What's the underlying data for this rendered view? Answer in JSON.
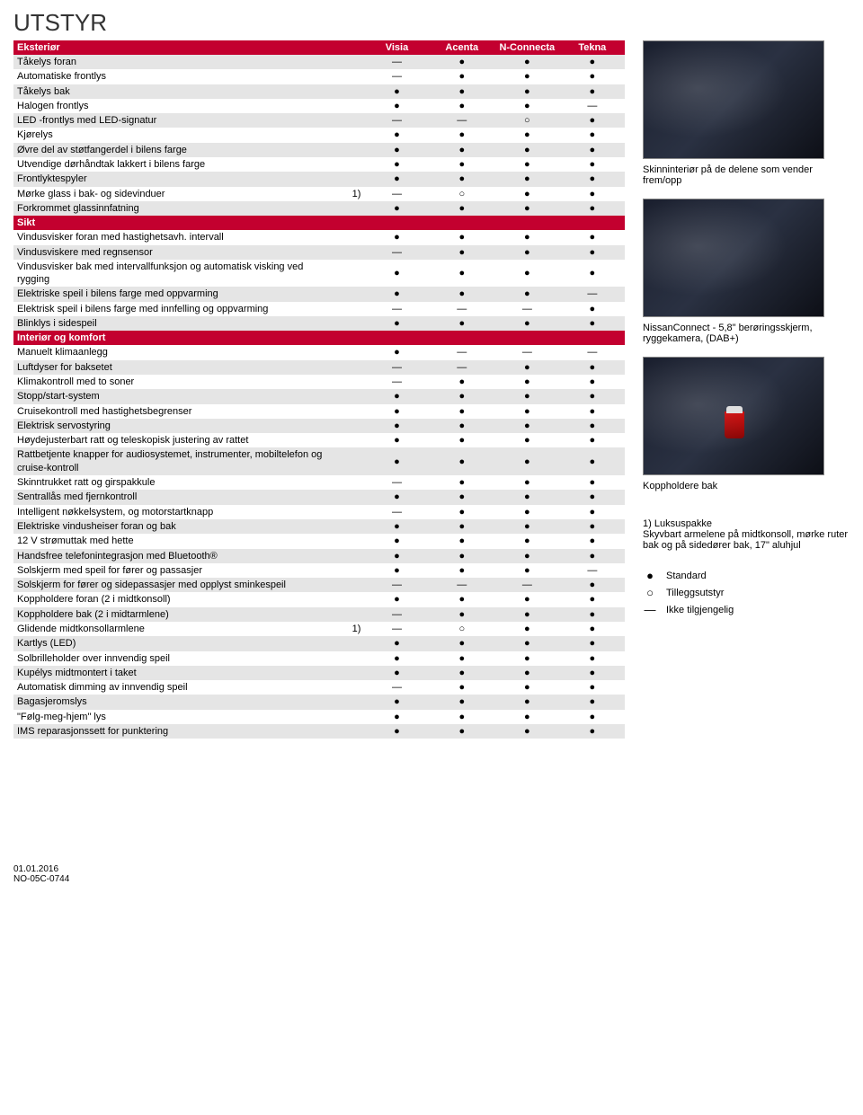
{
  "page_title": "UTSTYR",
  "columns": [
    "Visia",
    "Acenta",
    "N-Connecta",
    "Tekna"
  ],
  "symbols": {
    "std": "●",
    "opt": "○",
    "na": "—"
  },
  "sections": [
    {
      "header": "Eksteriør",
      "isFirst": true,
      "rows": [
        {
          "label": "Tåkelys foran",
          "note": "",
          "vals": [
            "na",
            "std",
            "std",
            "std"
          ]
        },
        {
          "label": "Automatiske frontlys",
          "note": "",
          "vals": [
            "na",
            "std",
            "std",
            "std"
          ]
        },
        {
          "label": "Tåkelys bak",
          "note": "",
          "vals": [
            "std",
            "std",
            "std",
            "std"
          ]
        },
        {
          "label": "Halogen frontlys",
          "note": "",
          "vals": [
            "std",
            "std",
            "std",
            "na"
          ]
        },
        {
          "label": "LED -frontlys med LED-signatur",
          "note": "",
          "vals": [
            "na",
            "na",
            "opt",
            "std"
          ]
        },
        {
          "label": "Kjørelys",
          "note": "",
          "vals": [
            "std",
            "std",
            "std",
            "std"
          ]
        },
        {
          "label": "Øvre del av støtfangerdel i bilens farge",
          "note": "",
          "vals": [
            "std",
            "std",
            "std",
            "std"
          ]
        },
        {
          "label": "Utvendige dørhåndtak lakkert i bilens farge",
          "note": "",
          "vals": [
            "std",
            "std",
            "std",
            "std"
          ]
        },
        {
          "label": "Frontlyktespyler",
          "note": "",
          "vals": [
            "std",
            "std",
            "std",
            "std"
          ]
        },
        {
          "label": "Mørke glass i bak- og sidevinduer",
          "note": "1)",
          "vals": [
            "na",
            "opt",
            "std",
            "std"
          ]
        },
        {
          "label": "Forkrommet glassinnfatning",
          "note": "",
          "vals": [
            "std",
            "std",
            "std",
            "std"
          ]
        }
      ]
    },
    {
      "header": "Sikt",
      "rows": [
        {
          "label": "Vindusvisker foran med hastighetsavh. intervall",
          "note": "",
          "vals": [
            "std",
            "std",
            "std",
            "std"
          ]
        },
        {
          "label": "Vindusviskere med regnsensor",
          "note": "",
          "vals": [
            "na",
            "std",
            "std",
            "std"
          ]
        },
        {
          "label": "Vindusvisker bak med intervallfunksjon og automatisk visking ved rygging",
          "note": "",
          "vals": [
            "std",
            "std",
            "std",
            "std"
          ]
        },
        {
          "label": "Elektriske speil i bilens farge med oppvarming",
          "note": "",
          "vals": [
            "std",
            "std",
            "std",
            "na"
          ]
        },
        {
          "label": "Elektrisk speil i bilens farge med innfelling og oppvarming",
          "note": "",
          "vals": [
            "na",
            "na",
            "na",
            "std"
          ]
        },
        {
          "label": "Blinklys i sidespeil",
          "note": "",
          "vals": [
            "std",
            "std",
            "std",
            "std"
          ]
        }
      ]
    },
    {
      "header": "Interiør og komfort",
      "rows": [
        {
          "label": "Manuelt klimaanlegg",
          "note": "",
          "vals": [
            "std",
            "na",
            "na",
            "na"
          ]
        },
        {
          "label": "Luftdyser for baksetet",
          "note": "",
          "vals": [
            "na",
            "na",
            "std",
            "std"
          ]
        },
        {
          "label": "Klimakontroll med to soner",
          "note": "",
          "vals": [
            "na",
            "std",
            "std",
            "std"
          ]
        },
        {
          "label": "Stopp/start-system",
          "note": "",
          "vals": [
            "std",
            "std",
            "std",
            "std"
          ]
        },
        {
          "label": "Cruisekontroll med hastighetsbegrenser",
          "note": "",
          "vals": [
            "std",
            "std",
            "std",
            "std"
          ]
        },
        {
          "label": "Elektrisk servostyring",
          "note": "",
          "vals": [
            "std",
            "std",
            "std",
            "std"
          ]
        },
        {
          "label": "Høydejusterbart ratt og teleskopisk justering av rattet",
          "note": "",
          "vals": [
            "std",
            "std",
            "std",
            "std"
          ]
        },
        {
          "label": "Rattbetjente knapper for audiosystemet, instrumenter, mobiltelefon og cruise-kontroll",
          "note": "",
          "vals": [
            "std",
            "std",
            "std",
            "std"
          ]
        },
        {
          "label": "Skinntrukket ratt og girspakkule",
          "note": "",
          "vals": [
            "na",
            "std",
            "std",
            "std"
          ]
        },
        {
          "label": "Sentrallås med fjernkontroll",
          "note": "",
          "vals": [
            "std",
            "std",
            "std",
            "std"
          ]
        },
        {
          "label": "Intelligent nøkkelsystem, og motorstartknapp",
          "note": "",
          "vals": [
            "na",
            "std",
            "std",
            "std"
          ]
        },
        {
          "label": "Elektriske vindusheiser foran og bak",
          "note": "",
          "vals": [
            "std",
            "std",
            "std",
            "std"
          ]
        },
        {
          "label": "12 V strømuttak med hette",
          "note": "",
          "vals": [
            "std",
            "std",
            "std",
            "std"
          ]
        },
        {
          "label": "Handsfree telefonintegrasjon med Bluetooth®",
          "note": "",
          "vals": [
            "std",
            "std",
            "std",
            "std"
          ]
        },
        {
          "label": "Solskjerm med speil for fører og passasjer",
          "note": "",
          "vals": [
            "std",
            "std",
            "std",
            "na"
          ]
        },
        {
          "label": "Solskjerm for fører og sidepassasjer med opplyst sminkespeil",
          "note": "",
          "vals": [
            "na",
            "na",
            "na",
            "std"
          ]
        },
        {
          "label": "Koppholdere foran (2 i midtkonsoll)",
          "note": "",
          "vals": [
            "std",
            "std",
            "std",
            "std"
          ]
        },
        {
          "label": "Koppholdere bak (2 i midtarmlene)",
          "note": "",
          "vals": [
            "na",
            "std",
            "std",
            "std"
          ]
        },
        {
          "label": "Glidende midtkonsollarmlene",
          "note": "1)",
          "vals": [
            "na",
            "opt",
            "std",
            "std"
          ]
        },
        {
          "label": "Kartlys (LED)",
          "note": "",
          "vals": [
            "std",
            "std",
            "std",
            "std"
          ]
        },
        {
          "label": "Solbrilleholder over innvendig speil",
          "note": "",
          "vals": [
            "std",
            "std",
            "std",
            "std"
          ]
        },
        {
          "label": "Kupélys midtmontert i taket",
          "note": "",
          "vals": [
            "std",
            "std",
            "std",
            "std"
          ]
        },
        {
          "label": "Automatisk dimming av innvendig speil",
          "note": "",
          "vals": [
            "na",
            "std",
            "std",
            "std"
          ]
        },
        {
          "label": "Bagasjeromslys",
          "note": "",
          "vals": [
            "std",
            "std",
            "std",
            "std"
          ]
        },
        {
          "label": "\"Følg-meg-hjem\" lys",
          "note": "",
          "vals": [
            "std",
            "std",
            "std",
            "std"
          ]
        },
        {
          "label": "IMS reparasjonssett for punktering",
          "note": "",
          "vals": [
            "std",
            "std",
            "std",
            "std"
          ]
        }
      ]
    }
  ],
  "captions": [
    "Skinninteriør på de delene som vender frem/opp",
    "NissanConnect  - 5,8\" berøringsskjerm, ryggekamera, (DAB+)",
    "Koppholdere bak",
    "1) Luksuspakke\nSkyvbart armelene på midtkonsoll, mørke ruter bak og på sidedører bak, 17\" aluhjul"
  ],
  "legend": [
    {
      "sym": "●",
      "text": "Standard"
    },
    {
      "sym": "○",
      "text": "Tilleggsutstyr"
    },
    {
      "sym": "—",
      "text": "Ikke tilgjengelig"
    }
  ],
  "footer": {
    "date": "01.01.2016",
    "code": "NO-05C-0744"
  }
}
